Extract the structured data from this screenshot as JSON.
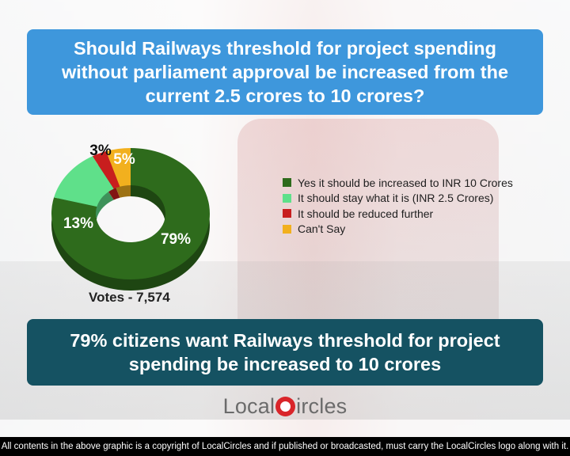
{
  "question": "Should Railways threshold for project spending without parliament approval be increased from the current 2.5 crores to 10 crores?",
  "chart_data": {
    "type": "donut",
    "categories": [
      "Yes it should be increased to INR 10 Crores",
      "It should stay what it is (INR 2.5 Crores)",
      "It should be reduced further",
      "Can't Say"
    ],
    "values": [
      79,
      13,
      3,
      5
    ],
    "labels": [
      "79%",
      "13%",
      "3%",
      "5%"
    ],
    "colors": [
      "#2e6b1c",
      "#5fe08a",
      "#c81e1e",
      "#f2b01e"
    ],
    "legend_position": "right"
  },
  "votes": "Votes - 7,574",
  "conclusion": "79% citizens want Railways threshold for project spending be increased to 10 crores",
  "logo": {
    "part1": "Local",
    "part2": "ircles"
  },
  "footer": "All contents in the above graphic is a copyright of LocalCircles and if published or broadcasted, must carry the LocalCircles logo along with it."
}
